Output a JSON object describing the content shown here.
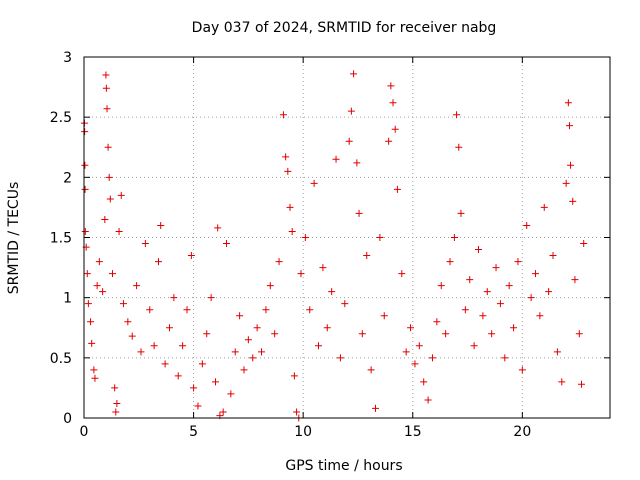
{
  "chart_data": {
    "type": "scatter",
    "title": "Day 037 of 2024, SRMTID for receiver nabg",
    "xlabel": "GPS time / hours",
    "ylabel": "SRMTID / TECUs",
    "xlim": [
      0,
      24
    ],
    "ylim": [
      0,
      3
    ],
    "xticks": [
      0,
      5,
      10,
      15,
      20
    ],
    "yticks": [
      0,
      0.5,
      1,
      1.5,
      2,
      2.5,
      3
    ],
    "xtick_labels": [
      "0",
      "5",
      "10",
      "15",
      "20"
    ],
    "ytick_labels": [
      "0",
      "0.5",
      "1",
      "1.5",
      "2",
      "2.5",
      "3"
    ],
    "grid": true,
    "marker": "plus",
    "color": "#e00000",
    "series": [
      {
        "name": "SRMTID",
        "points": [
          [
            0.02,
            2.45
          ],
          [
            0.03,
            2.38
          ],
          [
            0.04,
            2.1
          ],
          [
            0.05,
            1.9
          ],
          [
            0.06,
            1.55
          ],
          [
            0.1,
            1.42
          ],
          [
            0.15,
            1.2
          ],
          [
            0.2,
            0.95
          ],
          [
            0.3,
            0.8
          ],
          [
            0.35,
            0.62
          ],
          [
            0.45,
            0.4
          ],
          [
            0.5,
            0.33
          ],
          [
            0.6,
            1.1
          ],
          [
            0.7,
            1.3
          ],
          [
            0.85,
            1.05
          ],
          [
            0.95,
            1.65
          ],
          [
            1.0,
            2.85
          ],
          [
            1.02,
            2.74
          ],
          [
            1.05,
            2.57
          ],
          [
            1.1,
            2.25
          ],
          [
            1.15,
            2.0
          ],
          [
            1.2,
            1.82
          ],
          [
            1.3,
            1.2
          ],
          [
            1.4,
            0.25
          ],
          [
            1.45,
            0.05
          ],
          [
            1.5,
            0.12
          ],
          [
            1.6,
            1.55
          ],
          [
            1.7,
            1.85
          ],
          [
            1.8,
            0.95
          ],
          [
            2.0,
            0.8
          ],
          [
            2.2,
            0.68
          ],
          [
            2.4,
            1.1
          ],
          [
            2.6,
            0.55
          ],
          [
            2.8,
            1.45
          ],
          [
            3.0,
            0.9
          ],
          [
            3.2,
            0.6
          ],
          [
            3.4,
            1.3
          ],
          [
            3.5,
            1.6
          ],
          [
            3.7,
            0.45
          ],
          [
            3.9,
            0.75
          ],
          [
            4.1,
            1.0
          ],
          [
            4.3,
            0.35
          ],
          [
            4.5,
            0.6
          ],
          [
            4.7,
            0.9
          ],
          [
            4.9,
            1.35
          ],
          [
            5.0,
            0.25
          ],
          [
            5.2,
            0.1
          ],
          [
            5.4,
            0.45
          ],
          [
            5.6,
            0.7
          ],
          [
            5.8,
            1.0
          ],
          [
            6.0,
            0.3
          ],
          [
            6.1,
            1.58
          ],
          [
            6.2,
            0.02
          ],
          [
            6.35,
            0.05
          ],
          [
            6.5,
            1.45
          ],
          [
            6.7,
            0.2
          ],
          [
            6.9,
            0.55
          ],
          [
            7.1,
            0.85
          ],
          [
            7.3,
            0.4
          ],
          [
            7.5,
            0.65
          ],
          [
            7.7,
            0.5
          ],
          [
            7.9,
            0.75
          ],
          [
            8.1,
            0.55
          ],
          [
            8.3,
            0.9
          ],
          [
            8.5,
            1.1
          ],
          [
            8.7,
            0.7
          ],
          [
            8.9,
            1.3
          ],
          [
            9.1,
            2.52
          ],
          [
            9.2,
            2.17
          ],
          [
            9.3,
            2.05
          ],
          [
            9.4,
            1.75
          ],
          [
            9.5,
            1.55
          ],
          [
            9.6,
            0.35
          ],
          [
            9.7,
            0.05
          ],
          [
            9.8,
            0.0
          ],
          [
            9.9,
            1.2
          ],
          [
            10.1,
            1.5
          ],
          [
            10.3,
            0.9
          ],
          [
            10.5,
            1.95
          ],
          [
            10.7,
            0.6
          ],
          [
            10.9,
            1.25
          ],
          [
            11.1,
            0.75
          ],
          [
            11.3,
            1.05
          ],
          [
            11.5,
            2.15
          ],
          [
            11.7,
            0.5
          ],
          [
            11.9,
            0.95
          ],
          [
            12.1,
            2.3
          ],
          [
            12.2,
            2.55
          ],
          [
            12.3,
            2.86
          ],
          [
            12.45,
            2.12
          ],
          [
            12.55,
            1.7
          ],
          [
            12.7,
            0.7
          ],
          [
            12.9,
            1.35
          ],
          [
            13.1,
            0.4
          ],
          [
            13.3,
            0.08
          ],
          [
            13.5,
            1.5
          ],
          [
            13.7,
            0.85
          ],
          [
            13.9,
            2.3
          ],
          [
            14.0,
            2.76
          ],
          [
            14.1,
            2.62
          ],
          [
            14.2,
            2.4
          ],
          [
            14.3,
            1.9
          ],
          [
            14.5,
            1.2
          ],
          [
            14.7,
            0.55
          ],
          [
            14.9,
            0.75
          ],
          [
            15.1,
            0.45
          ],
          [
            15.3,
            0.6
          ],
          [
            15.5,
            0.3
          ],
          [
            15.7,
            0.15
          ],
          [
            15.9,
            0.5
          ],
          [
            16.1,
            0.8
          ],
          [
            16.3,
            1.1
          ],
          [
            16.5,
            0.7
          ],
          [
            16.7,
            1.3
          ],
          [
            16.9,
            1.5
          ],
          [
            17.0,
            2.52
          ],
          [
            17.1,
            2.25
          ],
          [
            17.2,
            1.7
          ],
          [
            17.4,
            0.9
          ],
          [
            17.6,
            1.15
          ],
          [
            17.8,
            0.6
          ],
          [
            18.0,
            1.4
          ],
          [
            18.2,
            0.85
          ],
          [
            18.4,
            1.05
          ],
          [
            18.6,
            0.7
          ],
          [
            18.8,
            1.25
          ],
          [
            19.0,
            0.95
          ],
          [
            19.2,
            0.5
          ],
          [
            19.4,
            1.1
          ],
          [
            19.6,
            0.75
          ],
          [
            19.8,
            1.3
          ],
          [
            20.0,
            0.4
          ],
          [
            20.2,
            1.6
          ],
          [
            20.4,
            1.0
          ],
          [
            20.6,
            1.2
          ],
          [
            20.8,
            0.85
          ],
          [
            21.0,
            1.75
          ],
          [
            21.2,
            1.05
          ],
          [
            21.4,
            1.35
          ],
          [
            21.6,
            0.55
          ],
          [
            21.8,
            0.3
          ],
          [
            22.0,
            1.95
          ],
          [
            22.1,
            2.62
          ],
          [
            22.15,
            2.43
          ],
          [
            22.2,
            2.1
          ],
          [
            22.3,
            1.8
          ],
          [
            22.4,
            1.15
          ],
          [
            22.6,
            0.7
          ],
          [
            22.7,
            0.28
          ],
          [
            22.8,
            1.45
          ]
        ]
      }
    ]
  }
}
